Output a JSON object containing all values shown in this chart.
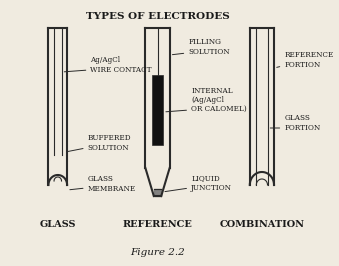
{
  "title": "TYPES OF ELECTRODES",
  "figure_label": "Figure 2.2",
  "bg_color": "#f0ebe0",
  "line_color": "#2a2a2a",
  "labels": {
    "glass": "GLASS",
    "reference": "REFERENCE",
    "combination": "COMBINATION"
  },
  "annotations": {
    "ag_agcl": "Ag/AgCl\nWIRE CONTACT",
    "buffered": "BUFFERED\nSOLUTION",
    "glass_mem": "GLASS\nMEMBRANE",
    "filling": "FILLING\nSOLUTION",
    "internal": "INTERNAL\n(Ag/AgCl\nOR CALOMEL)",
    "liquid": "LIQUID\nJUNCTION",
    "ref_portion": "REFERENCE\nPORTION",
    "glass_portion": "GLASS\nPORTION"
  },
  "font_color": "#1a1a1a"
}
